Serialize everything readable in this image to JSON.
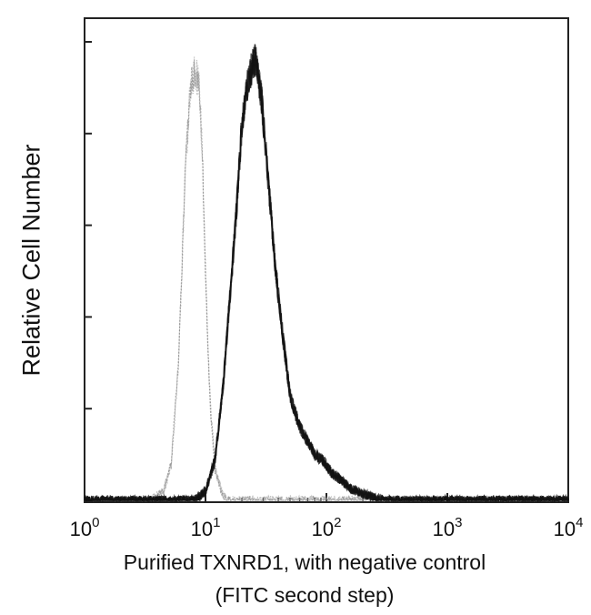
{
  "chart_data": {
    "type": "area",
    "xlabel": [
      "Purified TXNRD1, with negative control",
      "(FITC second step)"
    ],
    "ylabel": "Relative Cell Number",
    "x_scale": "log",
    "xlim": [
      1,
      10000
    ],
    "ylim": [
      0,
      1
    ],
    "x_ticks": [
      {
        "value": 1,
        "base": "10",
        "exp": "0"
      },
      {
        "value": 10,
        "base": "10",
        "exp": "1"
      },
      {
        "value": 100,
        "base": "10",
        "exp": "2"
      },
      {
        "value": 1000,
        "base": "10",
        "exp": "3"
      },
      {
        "value": 10000,
        "base": "10",
        "exp": "4"
      }
    ],
    "y_tick_values": [
      0,
      0.2,
      0.4,
      0.6,
      0.8,
      1.0
    ],
    "series": [
      {
        "style": "negative-control",
        "color": "#8a8a8a",
        "x": [
          3.5,
          4.5,
          5.2,
          6.0,
          6.8,
          7.5,
          8.2,
          8.9,
          9.5,
          10.2,
          11.0,
          12.0,
          13.5,
          15.0
        ],
        "y": [
          0,
          0.02,
          0.08,
          0.3,
          0.72,
          0.9,
          0.94,
          0.9,
          0.72,
          0.42,
          0.2,
          0.07,
          0.02,
          0
        ]
      },
      {
        "style": "txnrd1",
        "color": "#111111",
        "x": [
          8,
          10,
          12,
          14,
          16,
          18,
          20,
          23,
          26,
          29,
          33,
          38,
          44,
          50,
          60,
          70,
          80,
          95,
          110,
          130,
          160,
          200,
          250,
          300
        ],
        "y": [
          0,
          0.02,
          0.09,
          0.25,
          0.45,
          0.63,
          0.82,
          0.93,
          0.96,
          0.88,
          0.7,
          0.5,
          0.35,
          0.23,
          0.16,
          0.13,
          0.1,
          0.085,
          0.06,
          0.045,
          0.025,
          0.015,
          0.006,
          0
        ]
      }
    ]
  }
}
